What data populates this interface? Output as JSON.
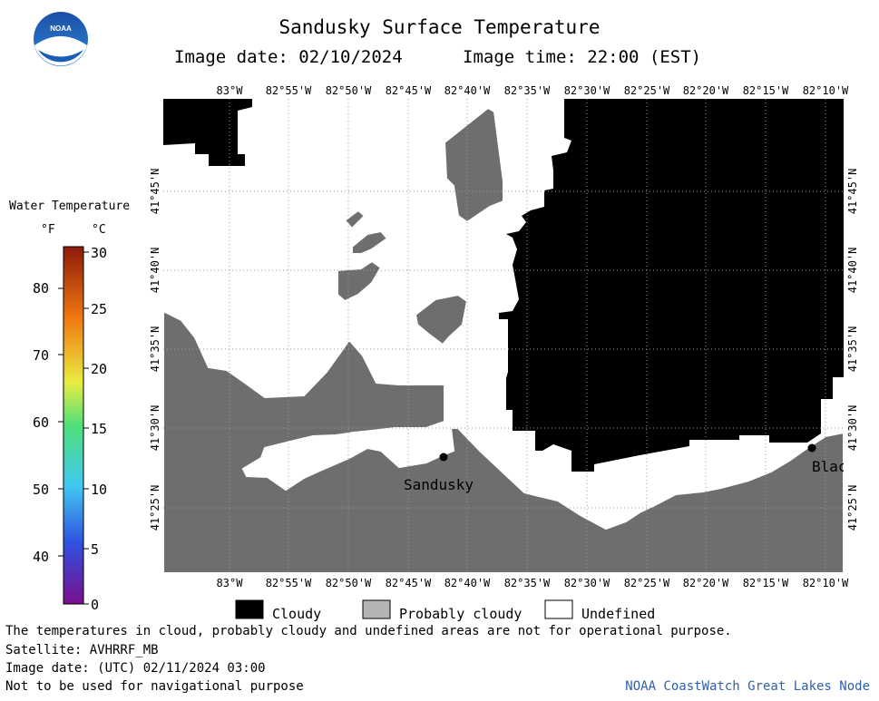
{
  "header": {
    "title": "Sandusky Surface Temperature",
    "image_date": "Image date: 02/10/2024",
    "image_time": "Image time: 22:00 (EST)"
  },
  "legend": {
    "title": "Water Temperature",
    "unit_f": "°F",
    "unit_c": "°C",
    "f_ticks": [
      "80",
      "70",
      "60",
      "50",
      "40"
    ],
    "c_ticks": [
      "30",
      "25",
      "20",
      "15",
      "10",
      "5",
      "0"
    ]
  },
  "map": {
    "lon_labels": [
      "83°W",
      "82°55'W",
      "82°50'W",
      "82°45'W",
      "82°40'W",
      "82°35'W",
      "82°30'W",
      "82°25'W",
      "82°20'W",
      "82°15'W",
      "82°10'W"
    ],
    "lat_labels": [
      "41°45'N",
      "41°40'N",
      "41°35'N",
      "41°30'N",
      "41°25'N"
    ],
    "places": [
      {
        "name": "Sandusky"
      },
      {
        "name": "Blac"
      }
    ]
  },
  "key": {
    "cloudy": "Cloudy",
    "probably_cloudy": "Probably cloudy",
    "undefined": "Undefined"
  },
  "footer": {
    "disclaimer": "The temperatures in cloud, probably cloudy and undefined areas are not for operational purpose.",
    "satellite": "Satellite: AVHRRF_MB",
    "utc_date": "Image date: (UTC) 02/11/2024  03:00",
    "nav_warning": "Not to be used for navigational purpose",
    "credit": "NOAA CoastWatch Great Lakes Node"
  },
  "logo": {
    "text": "NOAA"
  },
  "colors": {
    "cloudy": "#000000",
    "probably_cloudy": "#b4b4b4",
    "land": "#6e6e6e",
    "undefined": "#ffffff",
    "credit": "#2f5fb0"
  }
}
